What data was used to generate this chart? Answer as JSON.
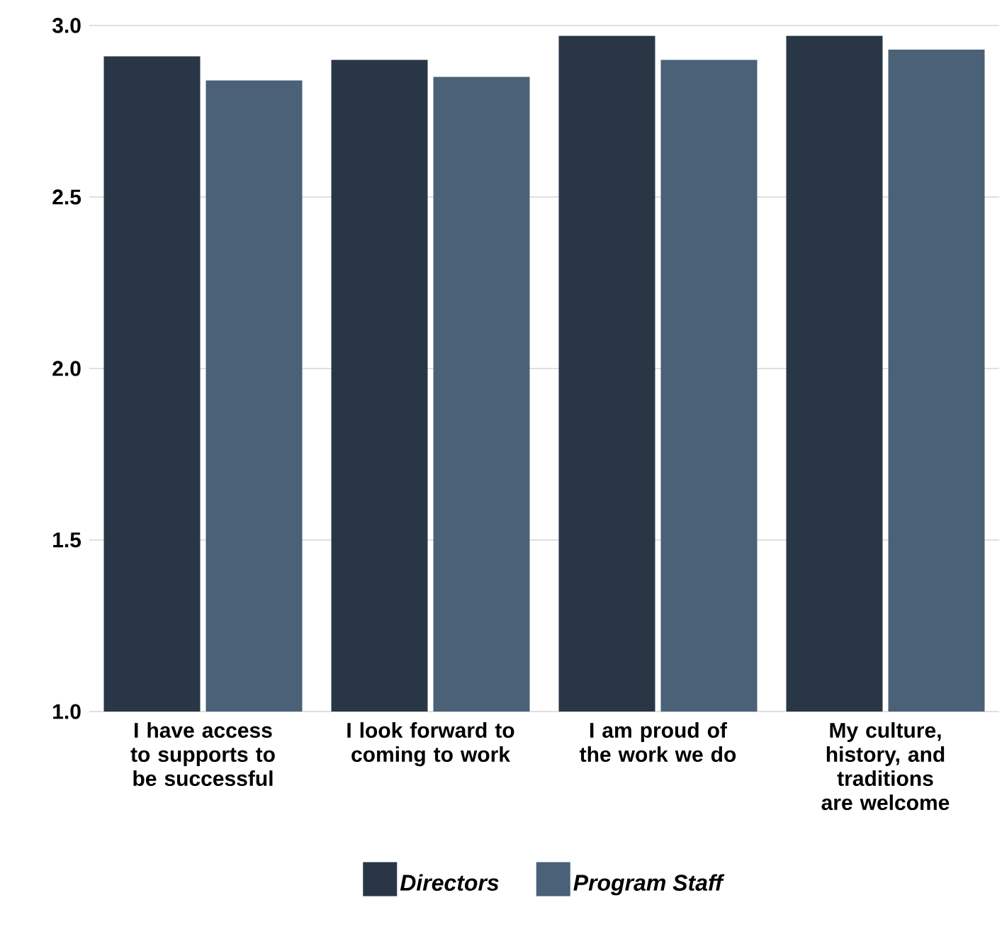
{
  "chart_data": {
    "type": "bar",
    "categories": [
      "I have access to supports to be successful",
      "I look forward to coming to work",
      "I am proud of the work we do",
      "My culture, history, and traditions are welcome"
    ],
    "series": [
      {
        "name": "Directors",
        "color": "#283646",
        "values": [
          2.91,
          2.9,
          2.97,
          2.97
        ]
      },
      {
        "name": "Program Staff",
        "color": "#4a6178",
        "values": [
          2.84,
          2.85,
          2.9,
          2.93
        ]
      }
    ],
    "ylim": [
      1,
      3
    ],
    "yticks": [
      {
        "value": 1,
        "label": "1.0"
      },
      1.5,
      {
        "value": 2,
        "label": "2.0"
      },
      2.5,
      {
        "value": 3,
        "label": "3.0"
      }
    ],
    "grid": "y",
    "legend": "bottom"
  }
}
